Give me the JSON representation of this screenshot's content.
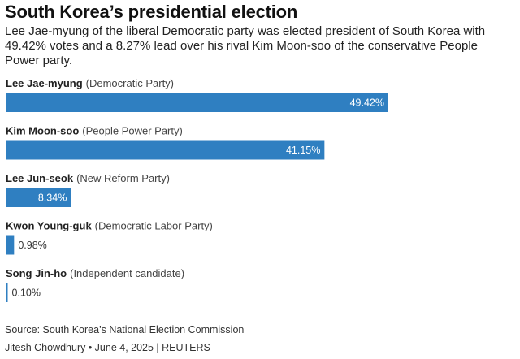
{
  "title": "South Korea’s presidential election",
  "subtitle": "Lee Jae-myung of the liberal Democratic party was elected president of South Korea with 49.42% votes and a 8.27% lead over his rival Kim Moon-soo of the conservative People Power party.",
  "source": "Source: South Korea’s National Election Commission",
  "credit": "Jitesh Chowdhury • June 4, 2025 | REUTERS",
  "colors": {
    "bar": "#2f7fc1",
    "text": "#222222"
  },
  "chart_data": {
    "type": "bar",
    "orientation": "horizontal",
    "title": "South Korea’s presidential election",
    "xlabel": "",
    "ylabel": "",
    "xlim": [
      0,
      50
    ],
    "unit": "%",
    "categories": [
      "Lee Jae-myung",
      "Kim Moon-soo",
      "Lee Jun-seok",
      "Kwon Young-guk",
      "Song Jin-ho"
    ],
    "parties": [
      "(Democratic Party)",
      "(People Power Party)",
      "(New Reform Party)",
      "(Democratic Labor Party)",
      "(Independent candidate)"
    ],
    "values": [
      49.42,
      41.15,
      8.34,
      0.98,
      0.1
    ],
    "labels": [
      "49.42%",
      "41.15%",
      "8.34%",
      "0.98%",
      "0.10%"
    ]
  }
}
